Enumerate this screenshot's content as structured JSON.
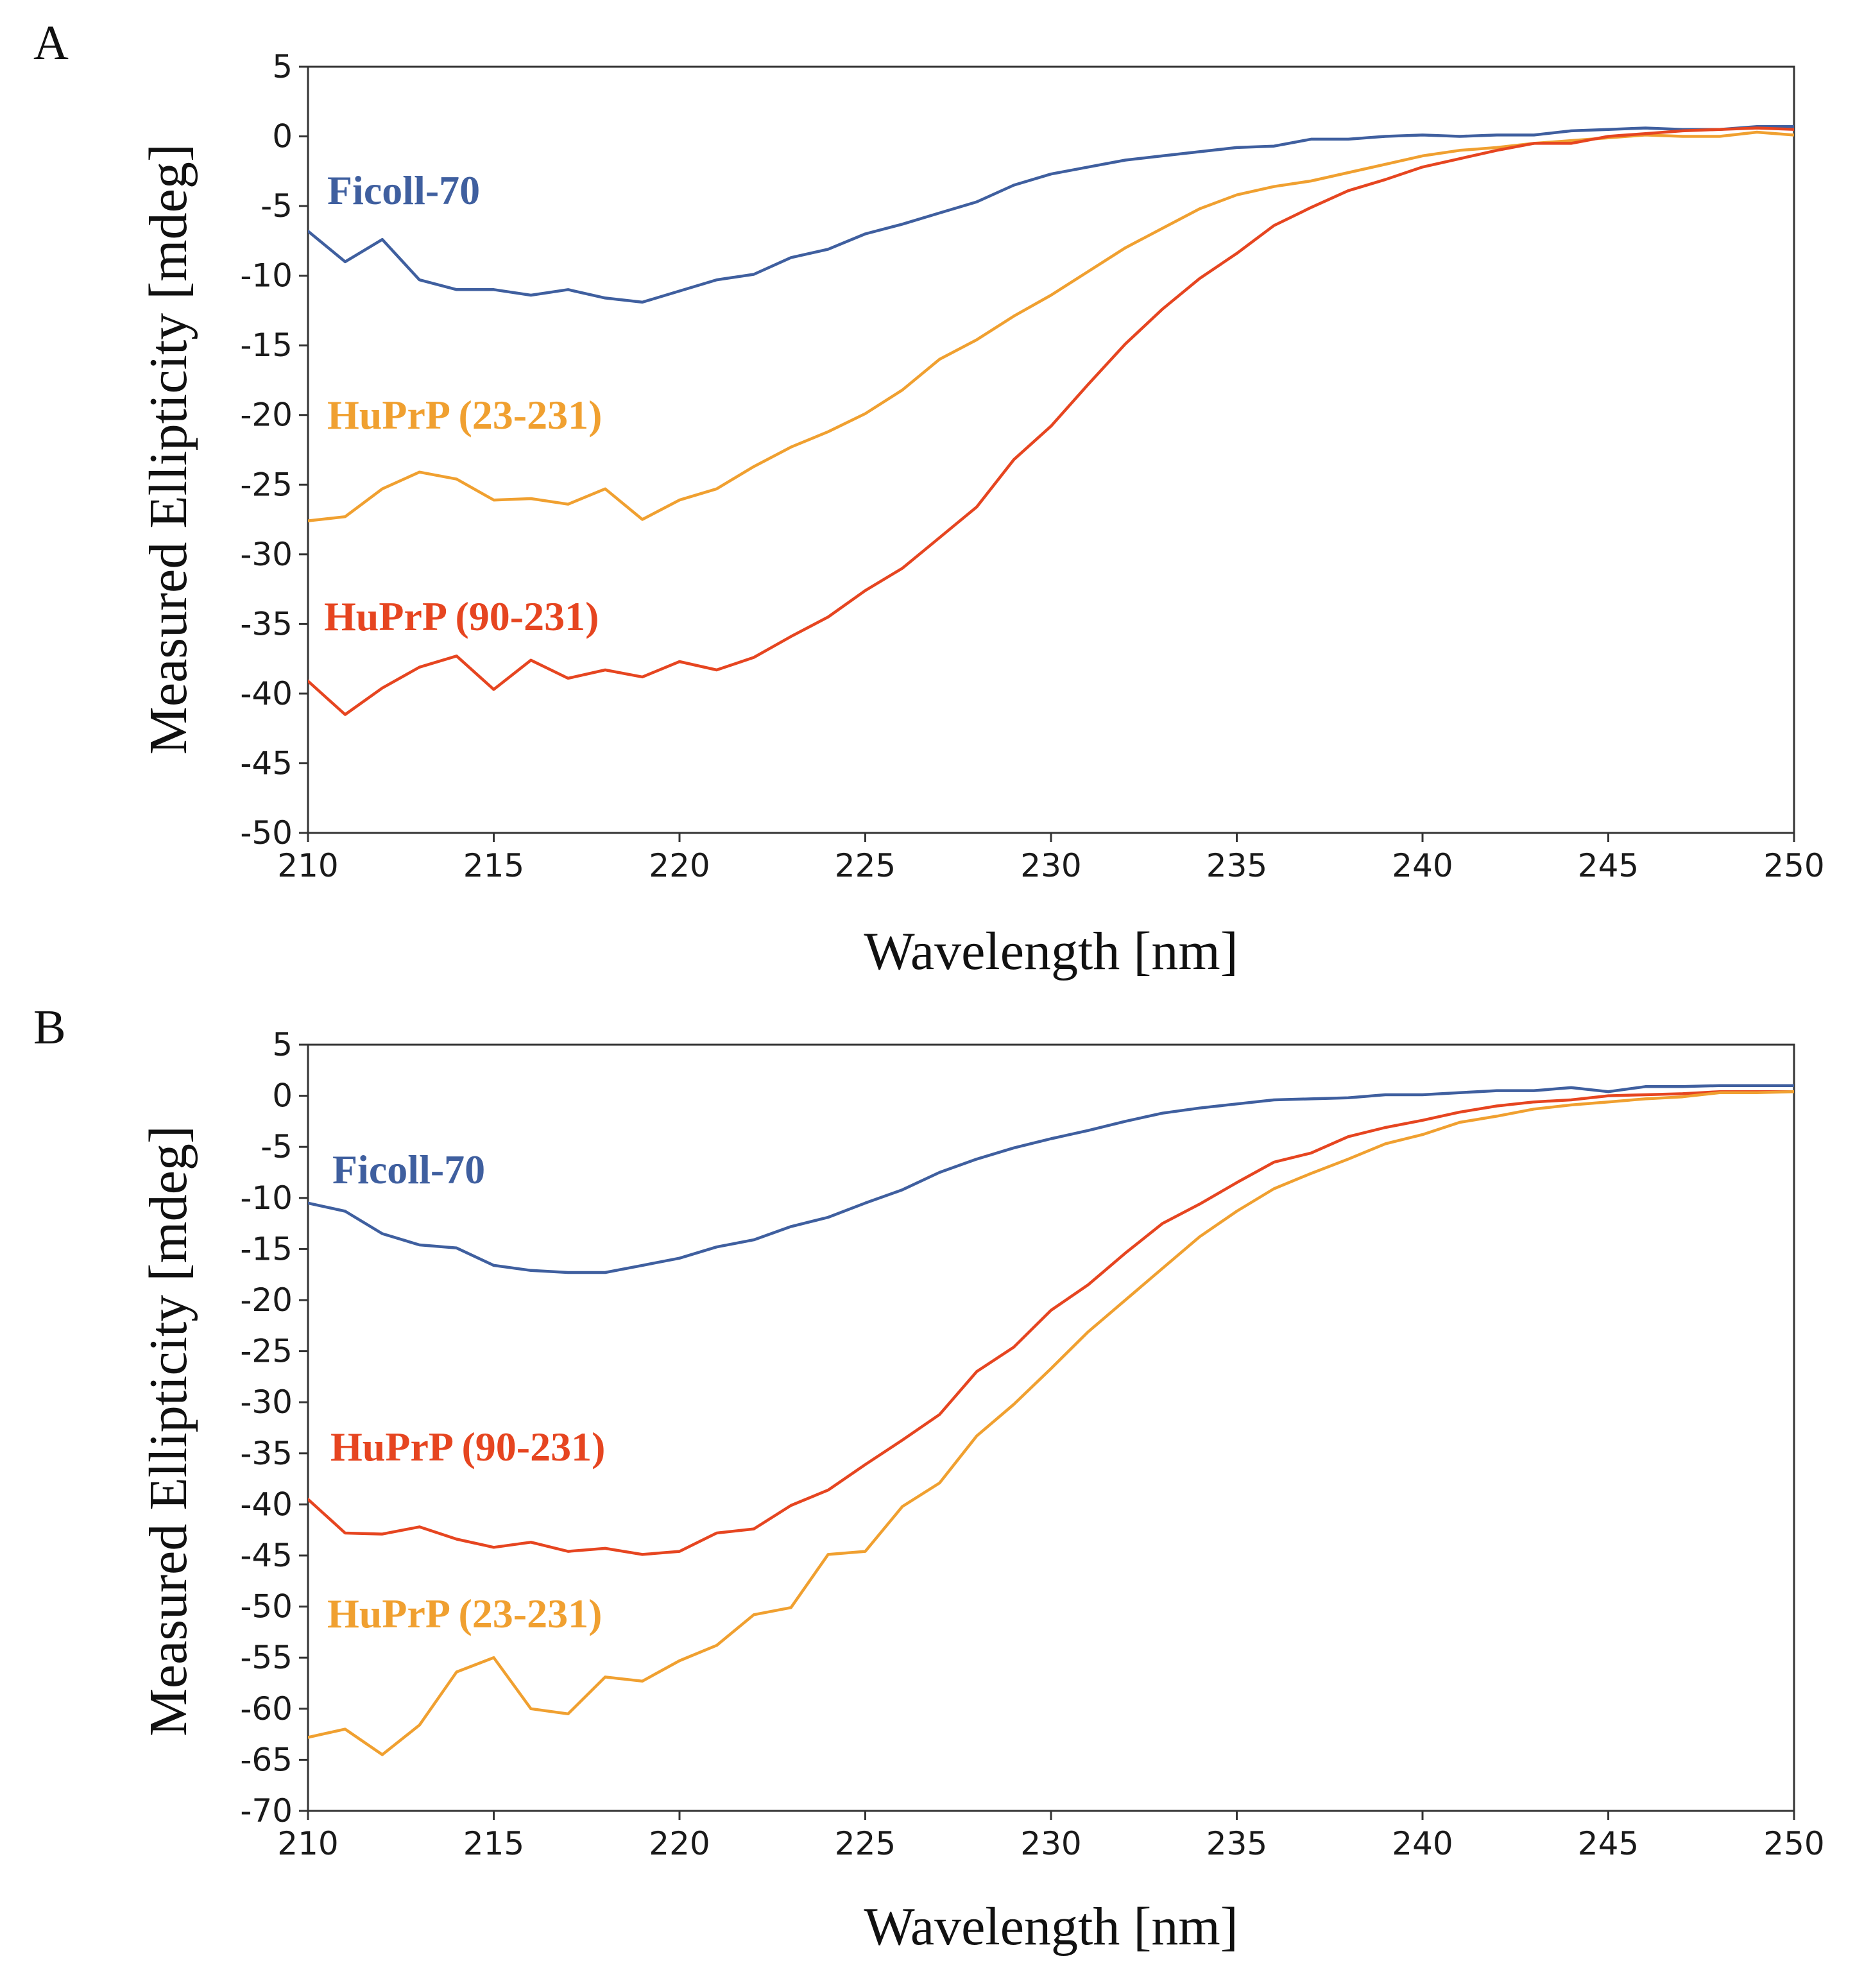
{
  "chart_data": [
    {
      "panel": "A",
      "type": "line",
      "xlabel": "Wavelength [nm]",
      "ylabel": "Measured Ellipticity [mdeg]",
      "xlim": [
        210,
        250
      ],
      "ylim": [
        -50,
        5
      ],
      "xticks": [
        210,
        215,
        220,
        225,
        230,
        235,
        240,
        245,
        250
      ],
      "yticks": [
        5,
        0,
        -5,
        -10,
        -15,
        -20,
        -25,
        -30,
        -35,
        -40,
        -45,
        -50
      ],
      "x": [
        210,
        211,
        212,
        213,
        214,
        215,
        216,
        217,
        218,
        219,
        220,
        221,
        222,
        223,
        224,
        225,
        226,
        227,
        228,
        229,
        230,
        231,
        232,
        233,
        234,
        235,
        236,
        237,
        238,
        239,
        240,
        241,
        242,
        243,
        244,
        245,
        246,
        247,
        248,
        249,
        250
      ],
      "series": [
        {
          "name": "Ficoll-70",
          "color": "#3f5f9f",
          "values": [
            -6.8,
            -9.0,
            -7.4,
            -10.3,
            -11.0,
            -11.0,
            -11.4,
            -11.0,
            -11.6,
            -11.9,
            -11.1,
            -10.3,
            -9.9,
            -8.7,
            -8.1,
            -7.0,
            -6.3,
            -5.5,
            -4.7,
            -3.5,
            -2.7,
            -2.2,
            -1.7,
            -1.4,
            -1.1,
            -0.8,
            -0.7,
            -0.2,
            -0.2,
            0.0,
            0.1,
            0.0,
            0.1,
            0.1,
            0.4,
            0.5,
            0.6,
            0.5,
            0.5,
            0.7,
            0.7
          ]
        },
        {
          "name": "HuPrP (23-231)",
          "color": "#f0a030",
          "values": [
            -27.6,
            -27.3,
            -25.3,
            -24.1,
            -24.6,
            -26.1,
            -26.0,
            -26.4,
            -25.3,
            -27.5,
            -26.1,
            -25.3,
            -23.7,
            -22.3,
            -21.2,
            -19.9,
            -18.2,
            -16.0,
            -14.6,
            -12.9,
            -11.4,
            -9.7,
            -8.0,
            -6.6,
            -5.2,
            -4.2,
            -3.6,
            -3.2,
            -2.6,
            -2.0,
            -1.4,
            -1.0,
            -0.8,
            -0.5,
            -0.3,
            -0.1,
            0.1,
            0.0,
            0.0,
            0.3,
            0.1
          ]
        },
        {
          "name": "HuPrP (90-231)",
          "color": "#e64520",
          "values": [
            -39.1,
            -41.5,
            -39.6,
            -38.1,
            -37.3,
            -39.7,
            -37.6,
            -38.9,
            -38.3,
            -38.8,
            -37.7,
            -38.3,
            -37.4,
            -35.9,
            -34.5,
            -32.6,
            -31.0,
            -28.8,
            -26.6,
            -23.2,
            -20.8,
            -17.8,
            -14.9,
            -12.4,
            -10.2,
            -8.4,
            -6.4,
            -5.1,
            -3.9,
            -3.1,
            -2.2,
            -1.6,
            -1.0,
            -0.5,
            -0.5,
            0.0,
            0.2,
            0.4,
            0.5,
            0.6,
            0.5
          ]
        }
      ],
      "annotations": [
        {
          "text": "Ficoll-70",
          "series": "Ficoll-70"
        },
        {
          "text": "HuPrP (23-231)",
          "series": "HuPrP (23-231)"
        },
        {
          "text": "HuPrP (90-231)",
          "series": "HuPrP (90-231)"
        }
      ]
    },
    {
      "panel": "B",
      "type": "line",
      "xlabel": "Wavelength [nm]",
      "ylabel": "Measured Ellipticity [mdeg]",
      "xlim": [
        210,
        250
      ],
      "ylim": [
        -70,
        5
      ],
      "xticks": [
        210,
        215,
        220,
        225,
        230,
        235,
        240,
        245,
        250
      ],
      "yticks": [
        5,
        0,
        -5,
        -10,
        -15,
        -20,
        -25,
        -30,
        -35,
        -40,
        -45,
        -50,
        -55,
        -60,
        -65,
        -70
      ],
      "x": [
        210,
        211,
        212,
        213,
        214,
        215,
        216,
        217,
        218,
        219,
        220,
        221,
        222,
        223,
        224,
        225,
        226,
        227,
        228,
        229,
        230,
        231,
        232,
        233,
        234,
        235,
        236,
        237,
        238,
        239,
        240,
        241,
        242,
        243,
        244,
        245,
        246,
        247,
        248,
        249,
        250
      ],
      "series": [
        {
          "name": "Ficoll-70",
          "color": "#3f5f9f",
          "values": [
            -10.5,
            -11.3,
            -13.5,
            -14.6,
            -14.9,
            -16.6,
            -17.1,
            -17.3,
            -17.3,
            -16.6,
            -15.9,
            -14.8,
            -14.1,
            -12.8,
            -11.9,
            -10.5,
            -9.2,
            -7.5,
            -6.2,
            -5.1,
            -4.2,
            -3.4,
            -2.5,
            -1.7,
            -1.2,
            -0.8,
            -0.4,
            -0.3,
            -0.2,
            0.1,
            0.1,
            0.3,
            0.5,
            0.5,
            0.8,
            0.4,
            0.9,
            0.9,
            1.0,
            1.0,
            1.0
          ]
        },
        {
          "name": "HuPrP (90-231)",
          "color": "#e64520",
          "values": [
            -39.5,
            -42.8,
            -42.9,
            -42.2,
            -43.4,
            -44.2,
            -43.7,
            -44.6,
            -44.3,
            -44.9,
            -44.6,
            -42.8,
            -42.4,
            -40.1,
            -38.6,
            -36.1,
            -33.7,
            -31.2,
            -27.0,
            -24.6,
            -21.0,
            -18.5,
            -15.4,
            -12.5,
            -10.6,
            -8.5,
            -6.5,
            -5.6,
            -4.0,
            -3.1,
            -2.4,
            -1.6,
            -1.0,
            -0.6,
            -0.4,
            0.0,
            0.1,
            0.2,
            0.4,
            0.4,
            0.4
          ]
        },
        {
          "name": "HuPrP (23-231)",
          "color": "#f0a030",
          "values": [
            -62.8,
            -62.0,
            -64.5,
            -61.6,
            -56.4,
            -55.0,
            -60.0,
            -60.5,
            -56.9,
            -57.3,
            -55.3,
            -53.8,
            -50.8,
            -50.1,
            -44.9,
            -44.6,
            -40.2,
            -37.9,
            -33.3,
            -30.2,
            -26.7,
            -23.1,
            -20.0,
            -16.9,
            -13.8,
            -11.3,
            -9.1,
            -7.6,
            -6.2,
            -4.7,
            -3.8,
            -2.6,
            -2.0,
            -1.3,
            -0.9,
            -0.6,
            -0.3,
            -0.1,
            0.3,
            0.3,
            0.4
          ]
        }
      ],
      "annotations": [
        {
          "text": "Ficoll-70",
          "series": "Ficoll-70"
        },
        {
          "text": "HuPrP (90-231)",
          "series": "HuPrP (90-231)"
        },
        {
          "text": "HuPrP (23-231)",
          "series": "HuPrP (23-231)"
        }
      ]
    }
  ]
}
